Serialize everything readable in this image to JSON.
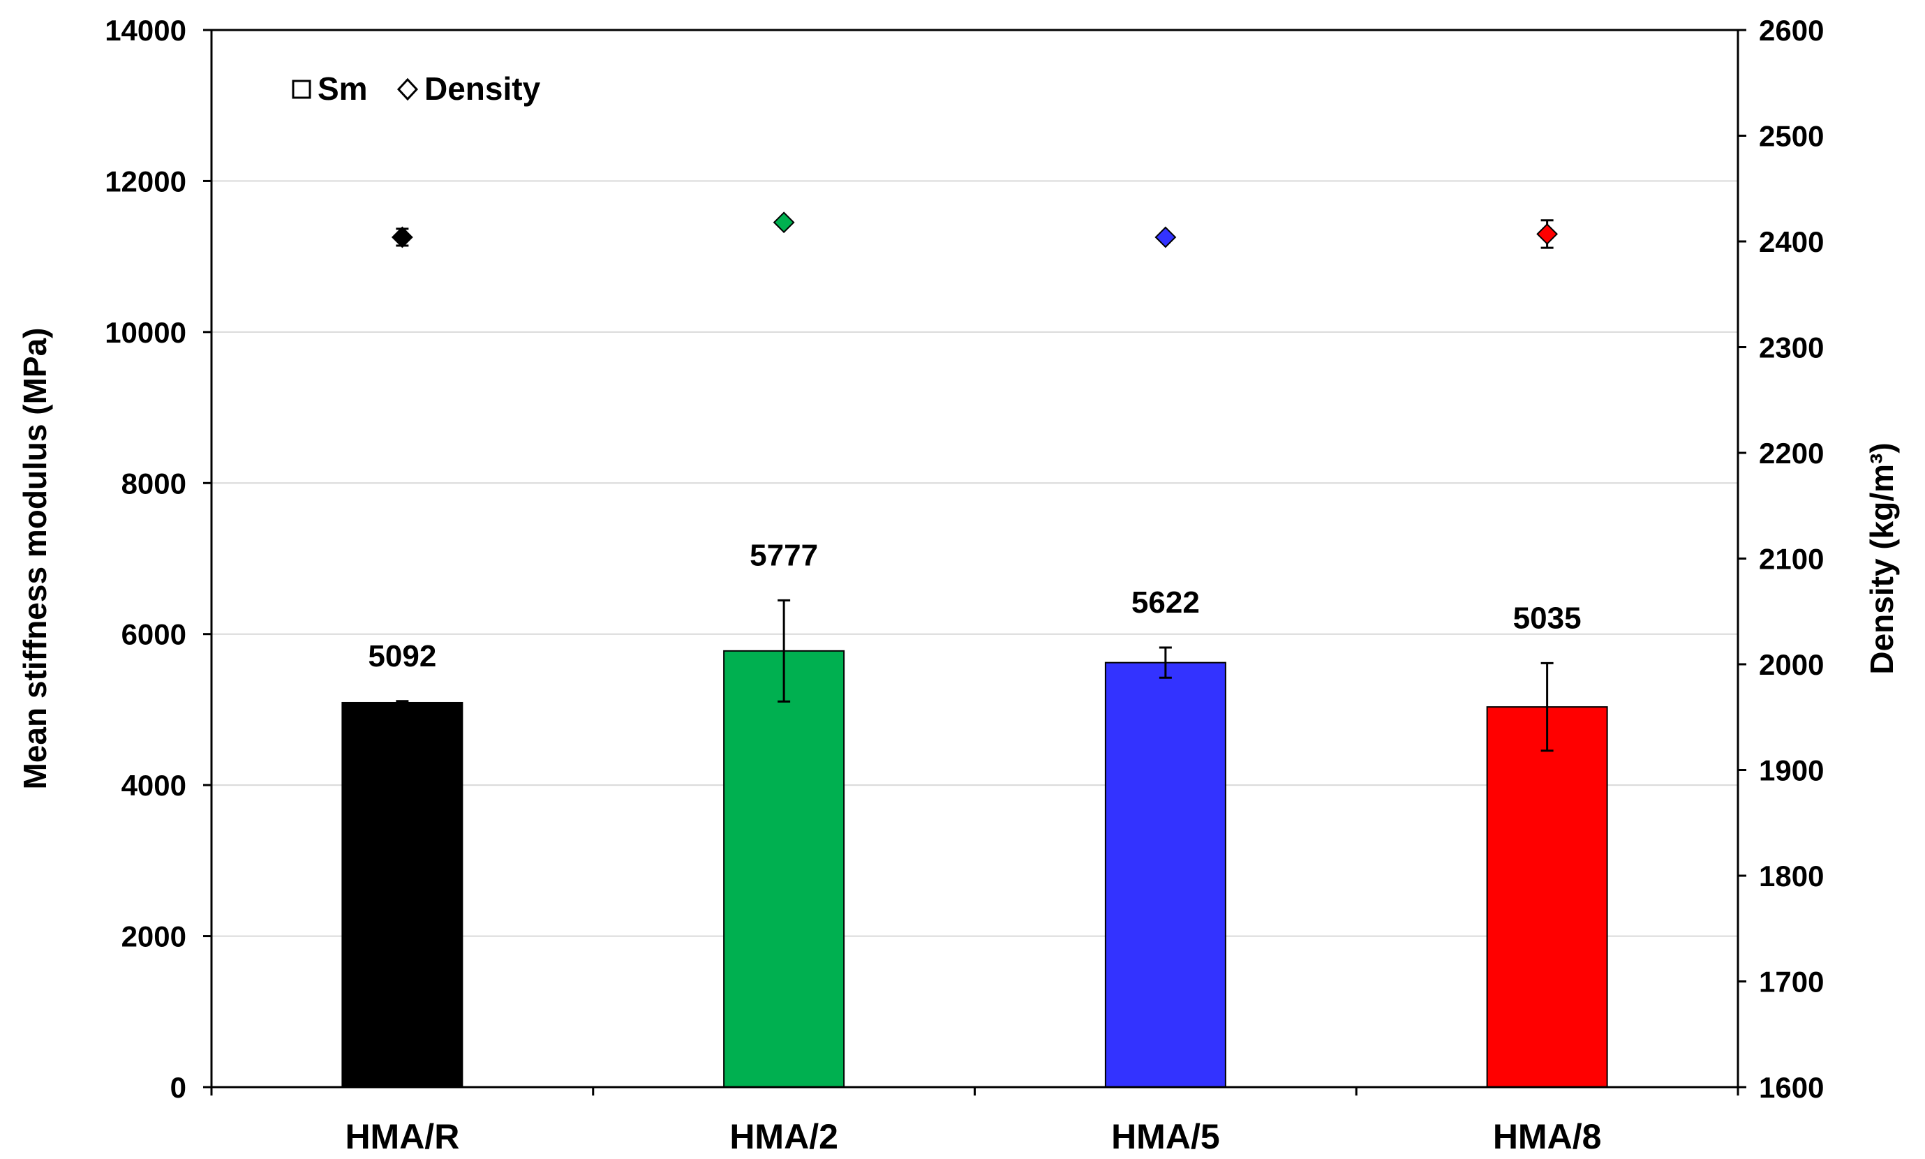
{
  "chart_data": {
    "type": "bar",
    "categories": [
      "HMA/R",
      "HMA/2",
      "HMA/5",
      "HMA/8"
    ],
    "colors": [
      "#000000",
      "#00b050",
      "#3333ff",
      "#ff0000"
    ],
    "series": [
      {
        "name": "Sm",
        "axis": "left",
        "type": "bar",
        "values": [
          5092,
          5777,
          5622,
          5035
        ],
        "error": [
          20,
          670,
          200,
          580
        ],
        "data_labels": [
          "5092",
          "5777",
          "5622",
          "5035"
        ]
      },
      {
        "name": "Density",
        "axis": "right",
        "type": "scatter",
        "marker": "diamond",
        "values": [
          2404,
          2418,
          2404,
          2407
        ],
        "error": [
          8,
          0,
          0,
          13
        ]
      }
    ],
    "ylabel": "Mean stiffness modulus (MPa)",
    "y2label": "Density (kg/m³)",
    "ylim": [
      0,
      14000
    ],
    "y2lim": [
      1600,
      2600
    ],
    "yticks": [
      0,
      2000,
      4000,
      6000,
      8000,
      10000,
      12000,
      14000
    ],
    "y2ticks": [
      1600,
      1700,
      1800,
      1900,
      2000,
      2100,
      2200,
      2300,
      2400,
      2500,
      2600
    ],
    "grid": true,
    "legend": {
      "placement": "top-left",
      "items": [
        {
          "label": "Sm",
          "icon": "square-outline-icon"
        },
        {
          "label": "Density",
          "icon": "diamond-outline-icon"
        }
      ]
    }
  }
}
